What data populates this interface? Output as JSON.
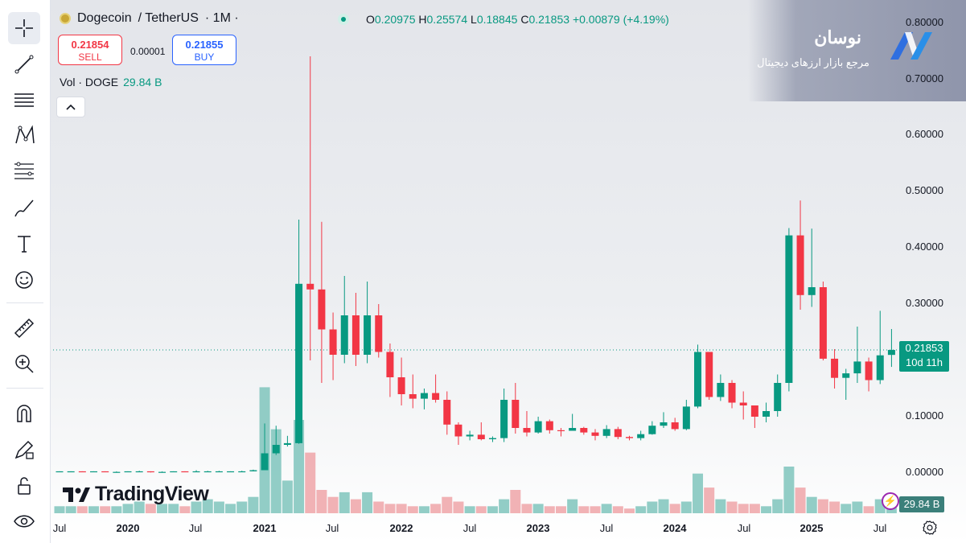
{
  "header": {
    "pair": "Dogecoin",
    "quote": "/ TetherUS",
    "interval": "· 1M ·",
    "ohlc": {
      "o_label": "O",
      "o": "0.20975",
      "h_label": "H",
      "h": "0.25574",
      "l_label": "L",
      "l": "0.18845",
      "c_label": "C",
      "c": "0.21853",
      "change": "+0.00879 (+4.19%)"
    }
  },
  "trade": {
    "sell_price": "0.21854",
    "sell_label": "SELL",
    "spread": "0.00001",
    "buy_price": "0.21855",
    "buy_label": "BUY"
  },
  "volume": {
    "label": "Vol · DOGE",
    "value": "29.84 B",
    "tag": "29.84 B"
  },
  "brand": {
    "title": "نوسان",
    "subtitle": "مرجع بازار ارزهای دیجیتال"
  },
  "watermark": "TradingView",
  "price_tag": {
    "price": "0.21853",
    "countdown": "10d 11h"
  },
  "toolbar": [
    "crosshair-icon",
    "trendline-icon",
    "horizontal-lines-icon",
    "pattern-icon",
    "fib-icon",
    "brush-icon",
    "text-icon",
    "emoji-icon",
    "ruler-icon",
    "zoom-in-icon",
    "magnet-icon",
    "lock-drawing-icon",
    "unlock-icon",
    "eye-icon"
  ],
  "colors": {
    "up": "#089981",
    "down": "#f23645",
    "up_vol": "#7fc4bc",
    "down_vol": "#eea4a8"
  },
  "chart_data": {
    "type": "candlestick",
    "title": "Dogecoin / TetherUS · 1M",
    "y_axis_labels": [
      "0.80000",
      "0.70000",
      "0.60000",
      "0.50000",
      "0.40000",
      "0.30000",
      "0.10000",
      "0.00000"
    ],
    "x_axis_labels": [
      "Jul",
      "2020",
      "Jul",
      "2021",
      "Jul",
      "2022",
      "Jul",
      "2023",
      "Jul",
      "2024",
      "Jul",
      "2025",
      "Jul"
    ],
    "ylim": [
      0.0,
      0.8
    ],
    "current_price": 0.21853,
    "series": [
      {
        "date": "2019-07",
        "o": 0.003,
        "h": 0.003,
        "l": 0.002,
        "c": 0.003,
        "v": 3
      },
      {
        "date": "2019-08",
        "o": 0.003,
        "h": 0.003,
        "l": 0.002,
        "c": 0.003,
        "v": 3
      },
      {
        "date": "2019-09",
        "o": 0.003,
        "h": 0.003,
        "l": 0.002,
        "c": 0.002,
        "v": 3
      },
      {
        "date": "2019-10",
        "o": 0.002,
        "h": 0.003,
        "l": 0.002,
        "c": 0.003,
        "v": 3
      },
      {
        "date": "2019-11",
        "o": 0.003,
        "h": 0.003,
        "l": 0.002,
        "c": 0.002,
        "v": 3
      },
      {
        "date": "2019-12",
        "o": 0.002,
        "h": 0.003,
        "l": 0.002,
        "c": 0.002,
        "v": 3
      },
      {
        "date": "2020-01",
        "o": 0.002,
        "h": 0.003,
        "l": 0.002,
        "c": 0.003,
        "v": 4
      },
      {
        "date": "2020-02",
        "o": 0.003,
        "h": 0.004,
        "l": 0.002,
        "c": 0.003,
        "v": 5
      },
      {
        "date": "2020-03",
        "o": 0.003,
        "h": 0.003,
        "l": 0.001,
        "c": 0.002,
        "v": 4
      },
      {
        "date": "2020-04",
        "o": 0.002,
        "h": 0.003,
        "l": 0.002,
        "c": 0.002,
        "v": 4
      },
      {
        "date": "2020-05",
        "o": 0.002,
        "h": 0.003,
        "l": 0.002,
        "c": 0.003,
        "v": 4
      },
      {
        "date": "2020-06",
        "o": 0.003,
        "h": 0.003,
        "l": 0.002,
        "c": 0.002,
        "v": 3
      },
      {
        "date": "2020-07",
        "o": 0.002,
        "h": 0.005,
        "l": 0.002,
        "c": 0.003,
        "v": 5
      },
      {
        "date": "2020-08",
        "o": 0.003,
        "h": 0.004,
        "l": 0.003,
        "c": 0.003,
        "v": 6
      },
      {
        "date": "2020-09",
        "o": 0.003,
        "h": 0.004,
        "l": 0.003,
        "c": 0.003,
        "v": 5
      },
      {
        "date": "2020-10",
        "o": 0.003,
        "h": 0.003,
        "l": 0.002,
        "c": 0.003,
        "v": 4
      },
      {
        "date": "2020-11",
        "o": 0.003,
        "h": 0.004,
        "l": 0.002,
        "c": 0.003,
        "v": 5
      },
      {
        "date": "2020-12",
        "o": 0.003,
        "h": 0.006,
        "l": 0.003,
        "c": 0.005,
        "v": 7
      },
      {
        "date": "2021-01",
        "o": 0.005,
        "h": 0.088,
        "l": 0.005,
        "c": 0.035,
        "v": 54
      },
      {
        "date": "2021-02",
        "o": 0.035,
        "h": 0.084,
        "l": 0.032,
        "c": 0.05,
        "v": 36
      },
      {
        "date": "2021-03",
        "o": 0.05,
        "h": 0.066,
        "l": 0.047,
        "c": 0.053,
        "v": 14
      },
      {
        "date": "2021-04",
        "o": 0.053,
        "h": 0.45,
        "l": 0.052,
        "c": 0.336,
        "v": 40
      },
      {
        "date": "2021-05",
        "o": 0.336,
        "h": 0.74,
        "l": 0.2,
        "c": 0.326,
        "v": 26
      },
      {
        "date": "2021-06",
        "o": 0.326,
        "h": 0.446,
        "l": 0.16,
        "c": 0.255,
        "v": 10
      },
      {
        "date": "2021-07",
        "o": 0.255,
        "h": 0.285,
        "l": 0.165,
        "c": 0.21,
        "v": 7
      },
      {
        "date": "2021-08",
        "o": 0.21,
        "h": 0.35,
        "l": 0.195,
        "c": 0.28,
        "v": 9
      },
      {
        "date": "2021-09",
        "o": 0.28,
        "h": 0.32,
        "l": 0.19,
        "c": 0.21,
        "v": 6
      },
      {
        "date": "2021-10",
        "o": 0.21,
        "h": 0.34,
        "l": 0.195,
        "c": 0.28,
        "v": 9
      },
      {
        "date": "2021-11",
        "o": 0.28,
        "h": 0.3,
        "l": 0.205,
        "c": 0.215,
        "v": 5
      },
      {
        "date": "2021-12",
        "o": 0.215,
        "h": 0.23,
        "l": 0.135,
        "c": 0.17,
        "v": 4
      },
      {
        "date": "2022-01",
        "o": 0.17,
        "h": 0.205,
        "l": 0.12,
        "c": 0.14,
        "v": 4
      },
      {
        "date": "2022-02",
        "o": 0.14,
        "h": 0.175,
        "l": 0.115,
        "c": 0.132,
        "v": 3
      },
      {
        "date": "2022-03",
        "o": 0.132,
        "h": 0.15,
        "l": 0.113,
        "c": 0.142,
        "v": 3
      },
      {
        "date": "2022-04",
        "o": 0.142,
        "h": 0.175,
        "l": 0.125,
        "c": 0.13,
        "v": 4
      },
      {
        "date": "2022-05",
        "o": 0.13,
        "h": 0.145,
        "l": 0.068,
        "c": 0.086,
        "v": 7
      },
      {
        "date": "2022-06",
        "o": 0.086,
        "h": 0.09,
        "l": 0.05,
        "c": 0.065,
        "v": 5
      },
      {
        "date": "2022-07",
        "o": 0.065,
        "h": 0.075,
        "l": 0.058,
        "c": 0.068,
        "v": 3
      },
      {
        "date": "2022-08",
        "o": 0.068,
        "h": 0.09,
        "l": 0.058,
        "c": 0.06,
        "v": 3
      },
      {
        "date": "2022-09",
        "o": 0.06,
        "h": 0.065,
        "l": 0.055,
        "c": 0.062,
        "v": 3
      },
      {
        "date": "2022-10",
        "o": 0.062,
        "h": 0.15,
        "l": 0.055,
        "c": 0.13,
        "v": 6
      },
      {
        "date": "2022-11",
        "o": 0.13,
        "h": 0.16,
        "l": 0.07,
        "c": 0.08,
        "v": 10
      },
      {
        "date": "2022-12",
        "o": 0.08,
        "h": 0.11,
        "l": 0.065,
        "c": 0.072,
        "v": 4
      },
      {
        "date": "2023-01",
        "o": 0.072,
        "h": 0.1,
        "l": 0.07,
        "c": 0.092,
        "v": 4
      },
      {
        "date": "2023-02",
        "o": 0.092,
        "h": 0.095,
        "l": 0.07,
        "c": 0.076,
        "v": 3
      },
      {
        "date": "2023-03",
        "o": 0.076,
        "h": 0.08,
        "l": 0.065,
        "c": 0.075,
        "v": 3
      },
      {
        "date": "2023-04",
        "o": 0.075,
        "h": 0.105,
        "l": 0.075,
        "c": 0.08,
        "v": 6
      },
      {
        "date": "2023-05",
        "o": 0.08,
        "h": 0.082,
        "l": 0.068,
        "c": 0.072,
        "v": 3
      },
      {
        "date": "2023-06",
        "o": 0.072,
        "h": 0.078,
        "l": 0.058,
        "c": 0.066,
        "v": 3
      },
      {
        "date": "2023-07",
        "o": 0.066,
        "h": 0.085,
        "l": 0.062,
        "c": 0.078,
        "v": 4
      },
      {
        "date": "2023-08",
        "o": 0.078,
        "h": 0.082,
        "l": 0.06,
        "c": 0.064,
        "v": 3
      },
      {
        "date": "2023-09",
        "o": 0.064,
        "h": 0.066,
        "l": 0.058,
        "c": 0.062,
        "v": 2
      },
      {
        "date": "2023-10",
        "o": 0.062,
        "h": 0.075,
        "l": 0.058,
        "c": 0.069,
        "v": 3
      },
      {
        "date": "2023-11",
        "o": 0.069,
        "h": 0.092,
        "l": 0.068,
        "c": 0.084,
        "v": 5
      },
      {
        "date": "2023-12",
        "o": 0.084,
        "h": 0.108,
        "l": 0.08,
        "c": 0.09,
        "v": 6
      },
      {
        "date": "2024-01",
        "o": 0.09,
        "h": 0.098,
        "l": 0.075,
        "c": 0.078,
        "v": 4
      },
      {
        "date": "2024-02",
        "o": 0.078,
        "h": 0.13,
        "l": 0.076,
        "c": 0.118,
        "v": 5
      },
      {
        "date": "2024-03",
        "o": 0.118,
        "h": 0.228,
        "l": 0.115,
        "c": 0.215,
        "v": 17
      },
      {
        "date": "2024-04",
        "o": 0.215,
        "h": 0.215,
        "l": 0.13,
        "c": 0.135,
        "v": 11
      },
      {
        "date": "2024-05",
        "o": 0.135,
        "h": 0.175,
        "l": 0.128,
        "c": 0.16,
        "v": 6
      },
      {
        "date": "2024-06",
        "o": 0.16,
        "h": 0.165,
        "l": 0.115,
        "c": 0.125,
        "v": 5
      },
      {
        "date": "2024-07",
        "o": 0.125,
        "h": 0.145,
        "l": 0.095,
        "c": 0.12,
        "v": 4
      },
      {
        "date": "2024-08",
        "o": 0.12,
        "h": 0.12,
        "l": 0.08,
        "c": 0.1,
        "v": 4
      },
      {
        "date": "2024-09",
        "o": 0.1,
        "h": 0.125,
        "l": 0.09,
        "c": 0.11,
        "v": 3
      },
      {
        "date": "2024-10",
        "o": 0.11,
        "h": 0.175,
        "l": 0.1,
        "c": 0.16,
        "v": 6
      },
      {
        "date": "2024-11",
        "o": 0.16,
        "h": 0.435,
        "l": 0.145,
        "c": 0.422,
        "v": 20
      },
      {
        "date": "2024-12",
        "o": 0.422,
        "h": 0.484,
        "l": 0.29,
        "c": 0.316,
        "v": 11
      },
      {
        "date": "2025-01",
        "o": 0.316,
        "h": 0.434,
        "l": 0.295,
        "c": 0.33,
        "v": 7
      },
      {
        "date": "2025-02",
        "o": 0.33,
        "h": 0.34,
        "l": 0.2,
        "c": 0.203,
        "v": 6
      },
      {
        "date": "2025-03",
        "o": 0.203,
        "h": 0.22,
        "l": 0.15,
        "c": 0.169,
        "v": 5
      },
      {
        "date": "2025-04",
        "o": 0.169,
        "h": 0.185,
        "l": 0.13,
        "c": 0.177,
        "v": 4
      },
      {
        "date": "2025-05",
        "o": 0.177,
        "h": 0.26,
        "l": 0.16,
        "c": 0.198,
        "v": 5
      },
      {
        "date": "2025-06",
        "o": 0.198,
        "h": 0.205,
        "l": 0.145,
        "c": 0.165,
        "v": 3
      },
      {
        "date": "2025-07",
        "o": 0.165,
        "h": 0.288,
        "l": 0.158,
        "c": 0.209,
        "v": 6
      },
      {
        "date": "2025-08",
        "o": 0.20975,
        "h": 0.25574,
        "l": 0.18845,
        "c": 0.21853,
        "v": 3
      }
    ]
  }
}
